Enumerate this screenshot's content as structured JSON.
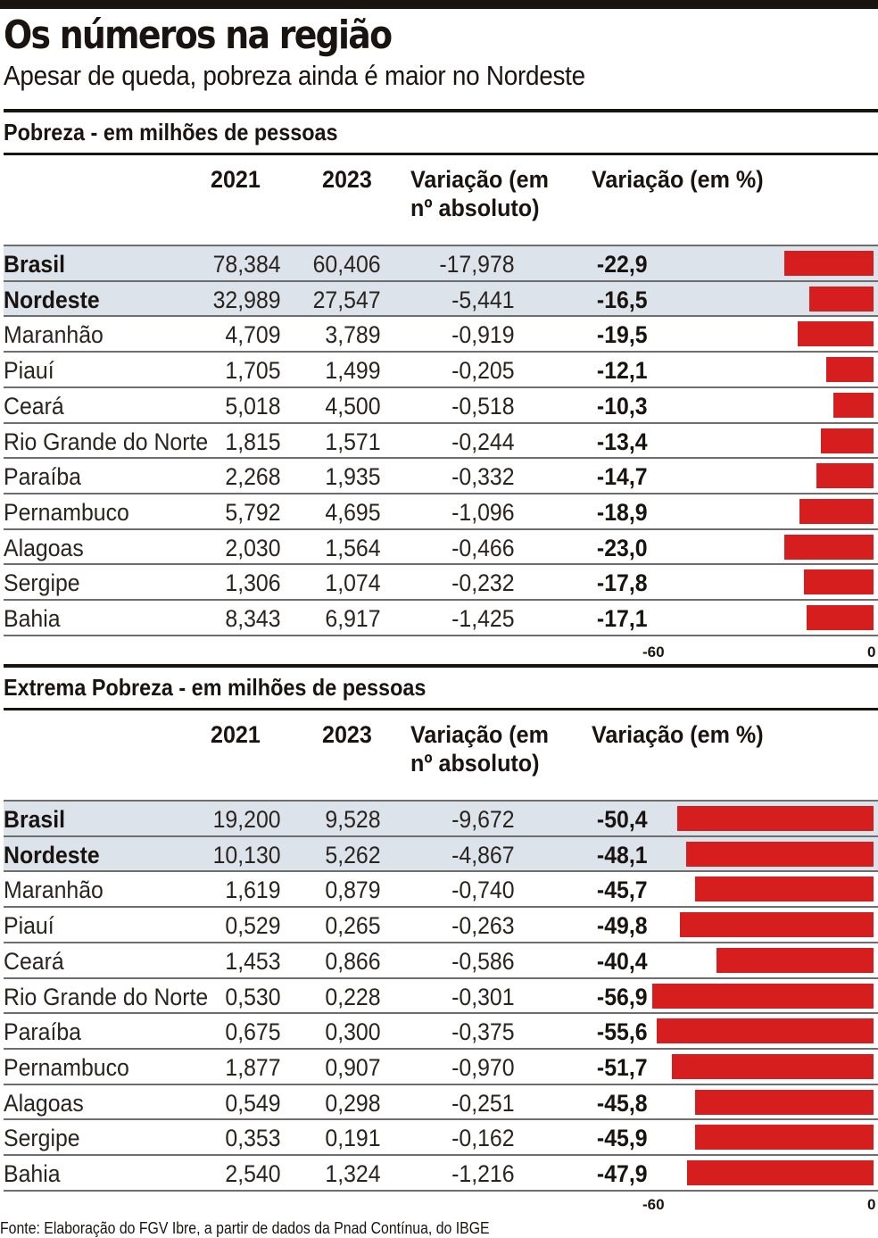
{
  "header": {
    "title": "Os números na região",
    "subtitle": "Apesar de queda, pobreza ainda é maior no Nordeste"
  },
  "columns": {
    "y2021": "2021",
    "y2023": "2023",
    "abs_line1": "Variação (em",
    "abs_line2": "nº absoluto)",
    "pct": "Variação (em %)"
  },
  "footer": "Fonte: Elaboração do FGV Ibre, a partir de dados da Pnad Contínua, do IBGE",
  "colors": {
    "bar": "#d71e1f",
    "highlight_row": "#dde3ea",
    "text": "#1a1410"
  },
  "chart_data": [
    {
      "type": "table",
      "title": "Pobreza - em milhões de pessoas",
      "bar_axis": {
        "min": -60,
        "max": 0,
        "ticks": [
          "-60",
          "0"
        ]
      },
      "rows": [
        {
          "name": "Brasil",
          "y2021": "78,384",
          "y2023": "60,406",
          "abs": "-17,978",
          "pct_label": "-22,9",
          "pct": -22.9,
          "highlight": true
        },
        {
          "name": "Nordeste",
          "y2021": "32,989",
          "y2023": "27,547",
          "abs": "-5,441",
          "pct_label": "-16,5",
          "pct": -16.5,
          "highlight": true
        },
        {
          "name": "Maranhão",
          "y2021": "4,709",
          "y2023": "3,789",
          "abs": "-0,919",
          "pct_label": "-19,5",
          "pct": -19.5
        },
        {
          "name": "Piauí",
          "y2021": "1,705",
          "y2023": "1,499",
          "abs": "-0,205",
          "pct_label": "-12,1",
          "pct": -12.1
        },
        {
          "name": "Ceará",
          "y2021": "5,018",
          "y2023": "4,500",
          "abs": "-0,518",
          "pct_label": "-10,3",
          "pct": -10.3
        },
        {
          "name": "Rio Grande do Norte",
          "y2021": "1,815",
          "y2023": "1,571",
          "abs": "-0,244",
          "pct_label": "-13,4",
          "pct": -13.4
        },
        {
          "name": "Paraíba",
          "y2021": "2,268",
          "y2023": "1,935",
          "abs": "-0,332",
          "pct_label": "-14,7",
          "pct": -14.7
        },
        {
          "name": "Pernambuco",
          "y2021": "5,792",
          "y2023": "4,695",
          "abs": "-1,096",
          "pct_label": "-18,9",
          "pct": -18.9
        },
        {
          "name": "Alagoas",
          "y2021": "2,030",
          "y2023": "1,564",
          "abs": "-0,466",
          "pct_label": "-23,0",
          "pct": -23.0
        },
        {
          "name": "Sergipe",
          "y2021": "1,306",
          "y2023": "1,074",
          "abs": "-0,232",
          "pct_label": "-17,8",
          "pct": -17.8
        },
        {
          "name": "Bahia",
          "y2021": "8,343",
          "y2023": "6,917",
          "abs": "-1,425",
          "pct_label": "-17,1",
          "pct": -17.1
        }
      ]
    },
    {
      "type": "table",
      "title": "Extrema Pobreza - em milhões de pessoas",
      "bar_axis": {
        "min": -60,
        "max": 0,
        "ticks": [
          "-60",
          "0"
        ]
      },
      "rows": [
        {
          "name": "Brasil",
          "y2021": "19,200",
          "y2023": "9,528",
          "abs": "-9,672",
          "pct_label": "-50,4",
          "pct": -50.4,
          "highlight": true
        },
        {
          "name": "Nordeste",
          "y2021": "10,130",
          "y2023": "5,262",
          "abs": "-4,867",
          "pct_label": "-48,1",
          "pct": -48.1,
          "highlight": true
        },
        {
          "name": "Maranhão",
          "y2021": "1,619",
          "y2023": "0,879",
          "abs": "-0,740",
          "pct_label": "-45,7",
          "pct": -45.7
        },
        {
          "name": "Piauí",
          "y2021": "0,529",
          "y2023": "0,265",
          "abs": "-0,263",
          "pct_label": "-49,8",
          "pct": -49.8
        },
        {
          "name": "Ceará",
          "y2021": "1,453",
          "y2023": "0,866",
          "abs": "-0,586",
          "pct_label": "-40,4",
          "pct": -40.4
        },
        {
          "name": "Rio Grande do Norte",
          "y2021": "0,530",
          "y2023": "0,228",
          "abs": "-0,301",
          "pct_label": "-56,9",
          "pct": -56.9
        },
        {
          "name": "Paraíba",
          "y2021": "0,675",
          "y2023": "0,300",
          "abs": "-0,375",
          "pct_label": "-55,6",
          "pct": -55.6
        },
        {
          "name": "Pernambuco",
          "y2021": "1,877",
          "y2023": "0,907",
          "abs": "-0,970",
          "pct_label": "-51,7",
          "pct": -51.7
        },
        {
          "name": "Alagoas",
          "y2021": "0,549",
          "y2023": "0,298",
          "abs": "-0,251",
          "pct_label": "-45,8",
          "pct": -45.8
        },
        {
          "name": "Sergipe",
          "y2021": "0,353",
          "y2023": "0,191",
          "abs": "-0,162",
          "pct_label": "-45,9",
          "pct": -45.9
        },
        {
          "name": "Bahia",
          "y2021": "2,540",
          "y2023": "1,324",
          "abs": "-1,216",
          "pct_label": "-47,9",
          "pct": -47.9
        }
      ]
    }
  ]
}
